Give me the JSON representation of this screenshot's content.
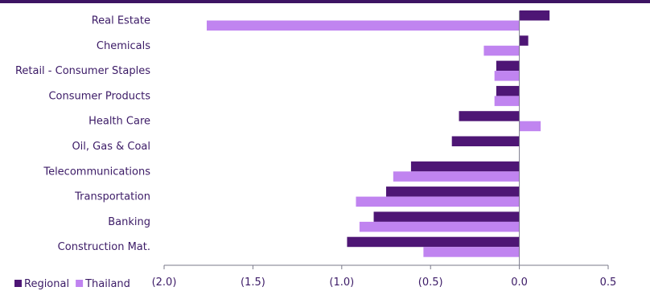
{
  "chart_data": {
    "type": "bar",
    "orientation": "horizontal",
    "categories": [
      "Real Estate",
      "Chemicals",
      "Retail - Consumer Staples",
      "Consumer Products",
      "Health Care",
      "Oil, Gas & Coal",
      "Telecommunications",
      "Transportation",
      "Banking",
      "Construction Mat."
    ],
    "series": [
      {
        "name": "Regional",
        "color": "#4e1675",
        "values": [
          0.17,
          0.05,
          -0.13,
          -0.13,
          -0.34,
          -0.38,
          -0.61,
          -0.75,
          -0.82,
          -0.97
        ]
      },
      {
        "name": "Thailand",
        "color": "#c084f0",
        "values": [
          -1.76,
          -0.2,
          -0.14,
          -0.14,
          0.12,
          null,
          -0.71,
          -0.92,
          -0.9,
          -0.54
        ]
      }
    ],
    "xlim": [
      -2.0,
      0.5
    ],
    "xticks": [
      -2.0,
      -1.5,
      -1.0,
      -0.5,
      0.0,
      0.5
    ],
    "xtick_labels": [
      "(2.0)",
      "(1.5)",
      "(1.0)",
      "(0.5)",
      "0.0",
      "0.5"
    ],
    "legend": {
      "position": "bottom-left"
    },
    "grid": false,
    "title": "",
    "xlabel": "",
    "ylabel": ""
  }
}
